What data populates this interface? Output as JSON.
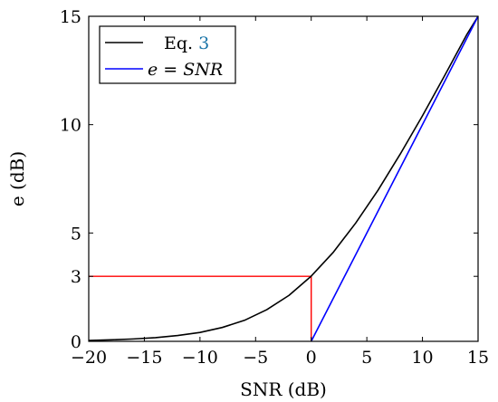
{
  "chart_data": {
    "type": "line",
    "xlabel": "SNR (dB)",
    "ylabel": "e (dB)",
    "xlim": [
      -20,
      15
    ],
    "ylim": [
      0,
      15
    ],
    "xticks": [
      -20,
      -15,
      -10,
      -5,
      0,
      5,
      10,
      15
    ],
    "yticks": [
      0,
      3,
      5,
      10,
      15
    ],
    "xtick_labels": [
      "−20",
      "−15",
      "−10",
      "−5",
      "0",
      "5",
      "10",
      "15"
    ],
    "ytick_labels": [
      "0",
      "3",
      "5",
      "10",
      "15"
    ],
    "legend_position": "top-left",
    "series": [
      {
        "name": "Eq. 3",
        "legend_prefix": "Eq. ",
        "legend_ref": "3",
        "color": "#000000",
        "x": [
          -20,
          -18,
          -16,
          -14,
          -12,
          -10,
          -8,
          -6,
          -4,
          -2,
          0,
          2,
          4,
          6,
          8,
          10,
          12,
          14,
          15
        ],
        "y": [
          0.04,
          0.07,
          0.11,
          0.17,
          0.27,
          0.41,
          0.64,
          0.97,
          1.46,
          2.12,
          3.01,
          4.12,
          5.46,
          6.97,
          8.64,
          10.41,
          12.27,
          14.17,
          15.0
        ]
      },
      {
        "name": "e = SNR",
        "color": "#0000ff",
        "x": [
          0,
          15
        ],
        "y": [
          0,
          15
        ]
      }
    ],
    "annotations": [
      {
        "color": "#ff0000",
        "points": [
          [
            -20,
            3
          ],
          [
            0,
            3
          ],
          [
            0,
            0
          ]
        ]
      }
    ]
  }
}
